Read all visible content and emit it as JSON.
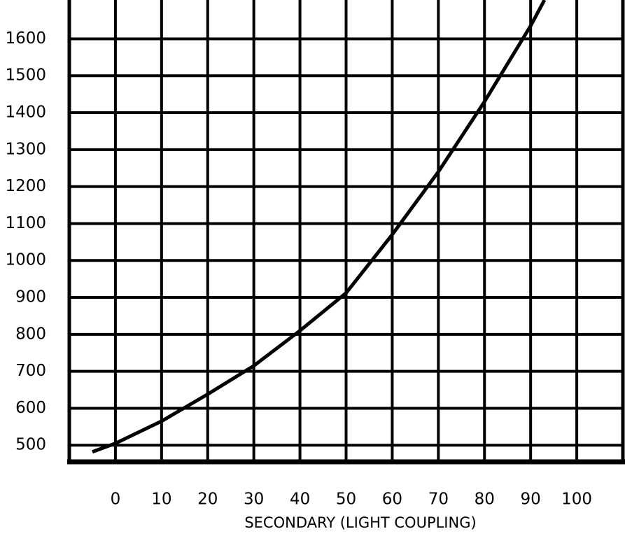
{
  "chart_data": {
    "type": "line",
    "x_label": "SECONDARY (LIGHT COUPLING)",
    "x": [
      -5,
      0,
      10,
      20,
      30,
      40,
      50,
      60,
      70,
      80,
      90,
      93
    ],
    "series": [
      {
        "color": "#000000",
        "values": [
          482,
          505,
          565,
          638,
          715,
          810,
          912,
          1070,
          1240,
          1430,
          1635,
          1705
        ]
      }
    ],
    "xlim": [
      -10,
      110
    ],
    "xticks": [
      0,
      10,
      20,
      30,
      40,
      50,
      60,
      70,
      80,
      90,
      100
    ],
    "ylim": [
      455,
      1705
    ],
    "yticks": [
      500,
      600,
      700,
      800,
      900,
      1000,
      1100,
      1200,
      1300,
      1400,
      1500,
      1600
    ],
    "grid": true
  }
}
